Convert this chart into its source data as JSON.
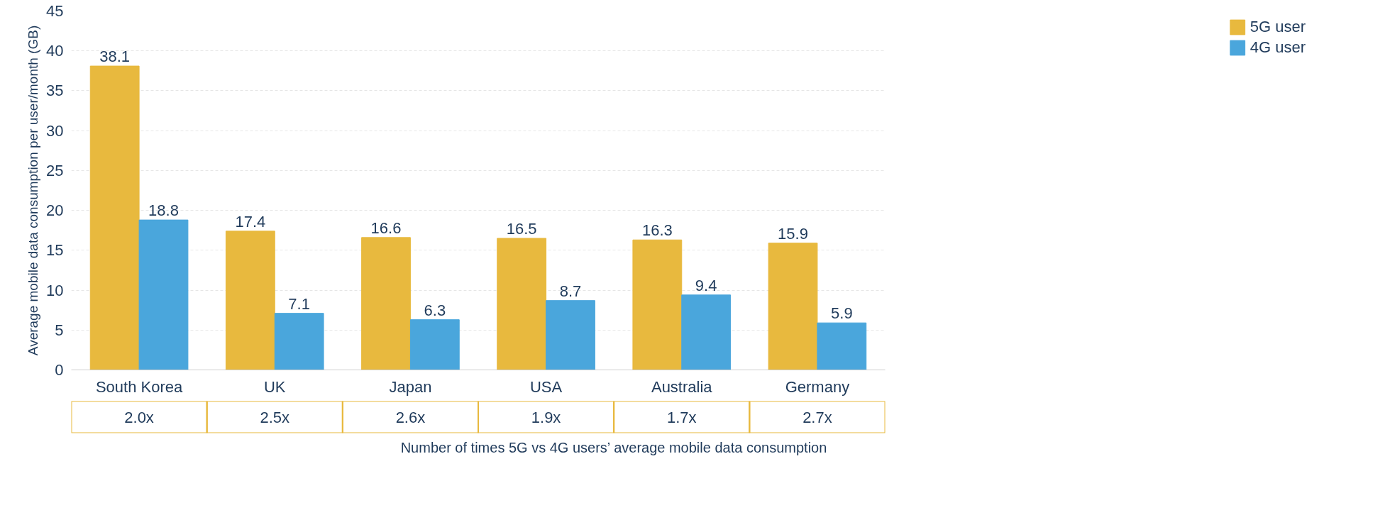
{
  "chart_data": {
    "type": "bar",
    "ylabel": "Average mobile data consumption per user/month (GB)",
    "categories": [
      "South Korea",
      "UK",
      "Japan",
      "USA",
      "Australia",
      "Germany"
    ],
    "series": [
      {
        "name": "5G user",
        "color": "#e8b93e",
        "values": [
          38.1,
          17.4,
          16.6,
          16.5,
          16.3,
          15.9
        ]
      },
      {
        "name": "4G user",
        "color": "#4aa6dc",
        "values": [
          18.8,
          7.1,
          6.3,
          8.7,
          9.4,
          5.9
        ]
      }
    ],
    "ylim": [
      0,
      45
    ],
    "yticks": [
      0,
      5,
      10,
      15,
      20,
      25,
      30,
      35,
      40,
      45
    ],
    "grid": "y",
    "legend": "right",
    "data_labels": true,
    "annotations": [
      "2.0x",
      "2.5x",
      "2.6x",
      "1.9x",
      "1.7x",
      "2.7x",
      "Number of times 5G vs 4G users’ average mobile data consumption"
    ]
  }
}
